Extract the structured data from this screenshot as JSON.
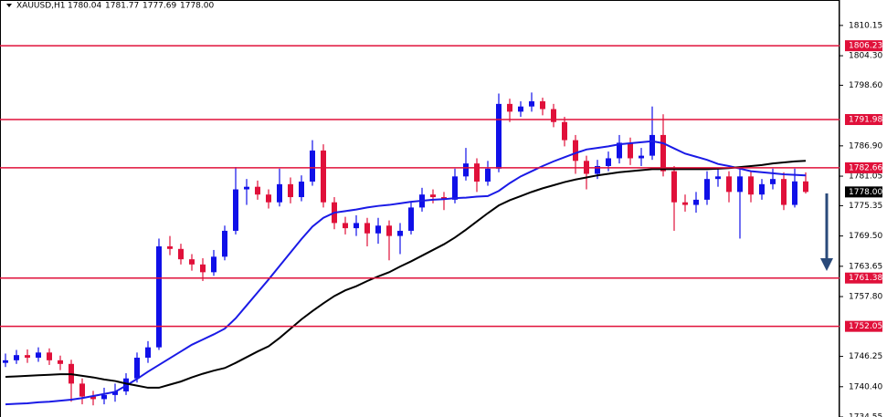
{
  "chart_data": {
    "type": "candlestick",
    "header": {
      "symbol": "XAUUSD,H1",
      "ohlc": [
        "1780.04",
        "1781.77",
        "1777.69",
        "1778.00"
      ]
    },
    "ylim": [
      1734.55,
      1815.06
    ],
    "yticks": [
      {
        "value": 1810.15,
        "label": "1810.15"
      },
      {
        "value": 1804.3,
        "label": "1804.30"
      },
      {
        "value": 1798.6,
        "label": "1798.60"
      },
      {
        "value": 1786.9,
        "label": "1786.90"
      },
      {
        "value": 1781.05,
        "label": "1781.05"
      },
      {
        "value": 1775.35,
        "label": "1775.35"
      },
      {
        "value": 1769.5,
        "label": "1769.50"
      },
      {
        "value": 1763.65,
        "label": "1763.65"
      },
      {
        "value": 1757.8,
        "label": "1757.80"
      },
      {
        "value": 1746.25,
        "label": "1746.25"
      },
      {
        "value": 1740.4,
        "label": "1740.40"
      },
      {
        "value": 1734.55,
        "label": "1734.55"
      }
    ],
    "levels": [
      {
        "value": 1806.23,
        "label": "1806.23"
      },
      {
        "value": 1791.98,
        "label": "1791.98"
      },
      {
        "value": 1782.66,
        "label": "1782.66"
      },
      {
        "value": 1761.38,
        "label": "1761.38"
      },
      {
        "value": 1752.05,
        "label": "1752.05"
      }
    ],
    "level_color": "#e0103a",
    "last_price": {
      "value": 1778,
      "label": "1778.00"
    },
    "up_color": "#1010e8",
    "down_color": "#e0103a",
    "open": [
      1745.0,
      1745.5,
      1746.5,
      1746.0,
      1747.0,
      1745.5,
      1744.8,
      1741.0,
      1738.5,
      1738.0,
      1738.8,
      1739.5,
      1742.0,
      1746.0,
      1748.0,
      1767.5,
      1767.0,
      1765.0,
      1764.0,
      1762.5,
      1765.5,
      1770.5,
      1778.5,
      1779.0,
      1777.5,
      1776.0,
      1779.5,
      1777.0,
      1780.0,
      1786.0,
      1776.0,
      1772.0,
      1771.0,
      1772.0,
      1770.0,
      1771.5,
      1769.5,
      1770.5,
      1775.0,
      1777.5,
      1777.0,
      1776.5,
      1781.0,
      1783.5,
      1780.0,
      1782.5,
      1795.0,
      1793.5,
      1794.5,
      1795.5,
      1794.0,
      1791.5,
      1788.0,
      1784.0,
      1781.5,
      1783.0,
      1784.5,
      1787.5,
      1784.5,
      1785.0,
      1789.0,
      1782.0,
      1776.0,
      1775.5,
      1776.5,
      1780.5,
      1781.0,
      1778.0,
      1781.0,
      1777.5,
      1779.5,
      1780.5,
      1775.5,
      1780.04
    ],
    "high": [
      1746.8,
      1747.5,
      1747.6,
      1748.0,
      1747.8,
      1746.4,
      1745.6,
      1742.0,
      1739.6,
      1740.2,
      1741.0,
      1743.0,
      1747.0,
      1749.2,
      1769.0,
      1769.5,
      1768.0,
      1766.0,
      1765.2,
      1766.8,
      1771.5,
      1782.8,
      1780.5,
      1780.2,
      1778.5,
      1782.5,
      1780.8,
      1781.2,
      1788.0,
      1787.2,
      1777.0,
      1773.2,
      1773.5,
      1773.0,
      1773.0,
      1772.5,
      1772.0,
      1776.0,
      1778.8,
      1778.5,
      1778.0,
      1782.5,
      1786.5,
      1784.5,
      1784.0,
      1797.0,
      1796.0,
      1795.5,
      1797.2,
      1796.2,
      1795.0,
      1792.5,
      1789.0,
      1785.0,
      1784.2,
      1785.8,
      1789.0,
      1788.5,
      1786.5,
      1794.5,
      1793.0,
      1783.0,
      1777.5,
      1778.0,
      1782.0,
      1782.5,
      1782.0,
      1782.5,
      1782.0,
      1780.5,
      1782.5,
      1781.8,
      1782.5,
      1781.77
    ],
    "low": [
      1744.2,
      1744.8,
      1745.0,
      1745.2,
      1744.6,
      1743.6,
      1737.5,
      1737.0,
      1736.8,
      1737.0,
      1737.5,
      1738.8,
      1741.2,
      1745.0,
      1747.5,
      1765.8,
      1764.0,
      1762.8,
      1760.8,
      1761.8,
      1764.8,
      1769.8,
      1775.5,
      1776.5,
      1774.8,
      1775.2,
      1775.8,
      1776.2,
      1779.2,
      1775.0,
      1770.8,
      1769.8,
      1769.5,
      1767.5,
      1768.0,
      1764.8,
      1766.0,
      1769.8,
      1774.2,
      1775.8,
      1774.5,
      1775.8,
      1780.2,
      1778.0,
      1779.2,
      1781.8,
      1791.5,
      1792.5,
      1793.5,
      1792.8,
      1790.5,
      1786.8,
      1781.5,
      1778.5,
      1780.5,
      1782.0,
      1783.5,
      1783.2,
      1783.0,
      1784.2,
      1781.0,
      1770.5,
      1774.2,
      1774.0,
      1775.5,
      1779.0,
      1776.0,
      1769.0,
      1776.0,
      1776.5,
      1778.5,
      1774.5,
      1775.0,
      1777.69
    ],
    "close": [
      1745.5,
      1746.5,
      1746.0,
      1747.0,
      1745.5,
      1744.8,
      1741.0,
      1738.5,
      1738.0,
      1738.8,
      1739.5,
      1742.0,
      1746.0,
      1748.0,
      1767.5,
      1767.0,
      1765.0,
      1764.0,
      1762.5,
      1765.5,
      1770.5,
      1778.5,
      1779.0,
      1777.5,
      1776.0,
      1779.5,
      1777.0,
      1780.0,
      1786.0,
      1776.0,
      1772.0,
      1771.0,
      1772.0,
      1770.0,
      1771.5,
      1769.5,
      1770.5,
      1775.0,
      1777.5,
      1777.0,
      1776.5,
      1781.0,
      1783.5,
      1780.0,
      1782.5,
      1795.0,
      1793.5,
      1794.5,
      1795.5,
      1794.0,
      1791.5,
      1788.0,
      1784.0,
      1781.5,
      1783.0,
      1784.5,
      1787.5,
      1784.5,
      1785.0,
      1789.0,
      1782.0,
      1776.0,
      1775.5,
      1776.5,
      1780.5,
      1781.0,
      1778.0,
      1781.0,
      1777.5,
      1779.5,
      1780.5,
      1775.5,
      1780.04,
      1778.0
    ],
    "lines": [
      {
        "color": "#1a1ae6",
        "values": [
          1737.0,
          1737.1,
          1737.2,
          1737.4,
          1737.5,
          1737.7,
          1737.9,
          1738.2,
          1738.6,
          1739.0,
          1739.4,
          1740.6,
          1741.9,
          1743.3,
          1744.6,
          1745.9,
          1747.2,
          1748.5,
          1749.5,
          1750.5,
          1751.6,
          1753.6,
          1756.1,
          1758.6,
          1761.1,
          1763.7,
          1766.3,
          1768.9,
          1771.3,
          1773.0,
          1774.0,
          1774.3,
          1774.6,
          1775.0,
          1775.3,
          1775.5,
          1775.8,
          1776.1,
          1776.3,
          1776.5,
          1776.6,
          1776.8,
          1776.9,
          1777.1,
          1777.2,
          1778.2,
          1779.7,
          1781.0,
          1782.0,
          1783.0,
          1783.9,
          1784.7,
          1785.5,
          1786.2,
          1786.5,
          1786.8,
          1787.2,
          1787.4,
          1787.6,
          1787.8,
          1787.4,
          1786.4,
          1785.4,
          1784.8,
          1784.2,
          1783.4,
          1783.0,
          1782.5,
          1782.0,
          1781.8,
          1781.6,
          1781.4,
          1781.3,
          1781.2
        ]
      },
      {
        "color": "#000000",
        "values": [
          1742.3,
          1742.4,
          1742.5,
          1742.6,
          1742.7,
          1742.8,
          1742.8,
          1742.5,
          1742.2,
          1741.8,
          1741.5,
          1741.0,
          1740.6,
          1740.2,
          1740.2,
          1740.8,
          1741.4,
          1742.2,
          1742.9,
          1743.5,
          1744.0,
          1745.0,
          1746.1,
          1747.2,
          1748.2,
          1749.8,
          1751.6,
          1753.4,
          1755.0,
          1756.5,
          1757.9,
          1759.0,
          1759.8,
          1760.8,
          1761.7,
          1762.5,
          1763.6,
          1764.6,
          1765.7,
          1766.8,
          1767.9,
          1769.2,
          1770.7,
          1772.3,
          1773.9,
          1775.4,
          1776.4,
          1777.2,
          1778.0,
          1778.7,
          1779.3,
          1779.9,
          1780.4,
          1780.8,
          1781.2,
          1781.5,
          1781.8,
          1782.0,
          1782.2,
          1782.4,
          1782.4,
          1782.4,
          1782.4,
          1782.4,
          1782.4,
          1782.5,
          1782.6,
          1782.8,
          1783.0,
          1783.2,
          1783.5,
          1783.7,
          1783.9,
          1784.0
        ]
      }
    ]
  }
}
